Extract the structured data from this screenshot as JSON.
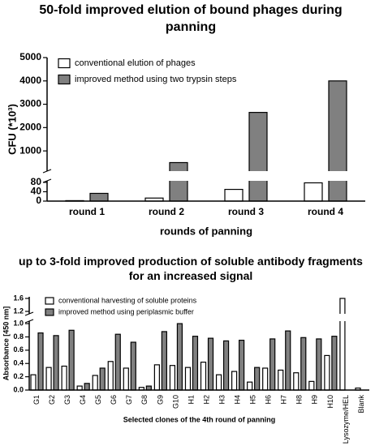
{
  "chart_data": [
    {
      "type": "bar",
      "title": "50-fold improved elution of bound phages during panning",
      "ylabel": "CFU (*10³)",
      "xlabel": "rounds of panning",
      "categories": [
        "round 1",
        "round 2",
        "round 3",
        "round 4"
      ],
      "series": [
        {
          "name": "conventional elution of phages",
          "color": "#ffffff",
          "values": [
            2,
            13,
            50,
            78
          ]
        },
        {
          "name": "improved method using two trypsin steps",
          "color": "#808080",
          "values": [
            33,
            500,
            2650,
            4000
          ]
        }
      ],
      "y_segments": [
        {
          "ylim": [
            0,
            90
          ],
          "yticks": [
            0,
            40,
            80
          ]
        },
        {
          "ylim": [
            100,
            5000
          ],
          "yticks": [
            1000,
            2000,
            3000,
            4000,
            5000
          ]
        }
      ],
      "legend": "upper left"
    },
    {
      "type": "bar",
      "title": "up to 3-fold improved production of soluble antibody fragments for an increased signal",
      "ylabel": "Absorbance [450 nm]",
      "xlabel": "Selected clones of the 4th round of panning",
      "categories": [
        "G1",
        "G2",
        "G3",
        "G4",
        "G5",
        "G6",
        "G7",
        "G8",
        "G9",
        "G10",
        "H1",
        "H2",
        "H3",
        "H4",
        "H5",
        "H6",
        "H7",
        "H8",
        "H9",
        "H10",
        "Lysozyme/HEL",
        "Blank"
      ],
      "series": [
        {
          "name": "conventional harvesting of soluble proteins",
          "color": "#ffffff",
          "values": [
            0.23,
            0.34,
            0.36,
            0.06,
            0.22,
            0.43,
            0.33,
            0.04,
            0.38,
            0.37,
            0.34,
            0.42,
            0.23,
            0.28,
            0.12,
            0.33,
            0.3,
            0.26,
            0.13,
            0.52,
            1.6,
            0.03
          ]
        },
        {
          "name": "improved method using periplasmic buffer",
          "color": "#808080",
          "values": [
            0.86,
            0.82,
            0.9,
            0.1,
            0.33,
            0.84,
            0.72,
            0.06,
            0.88,
            1.0,
            0.81,
            0.78,
            0.74,
            0.75,
            0.34,
            0.77,
            0.89,
            0.79,
            0.77,
            0.81,
            null,
            null
          ]
        }
      ],
      "y_segments": [
        {
          "ylim": [
            0,
            1.05
          ],
          "yticks": [
            {
              "value": 0,
              "label": "0.0"
            },
            0.2,
            0.4,
            0.6,
            0.8,
            {
              "value": 1,
              "label": "1.0"
            }
          ]
        },
        {
          "ylim": [
            1.1,
            1.65
          ],
          "yticks": [
            1.2,
            1.6
          ]
        }
      ],
      "legend": "upper left"
    }
  ]
}
